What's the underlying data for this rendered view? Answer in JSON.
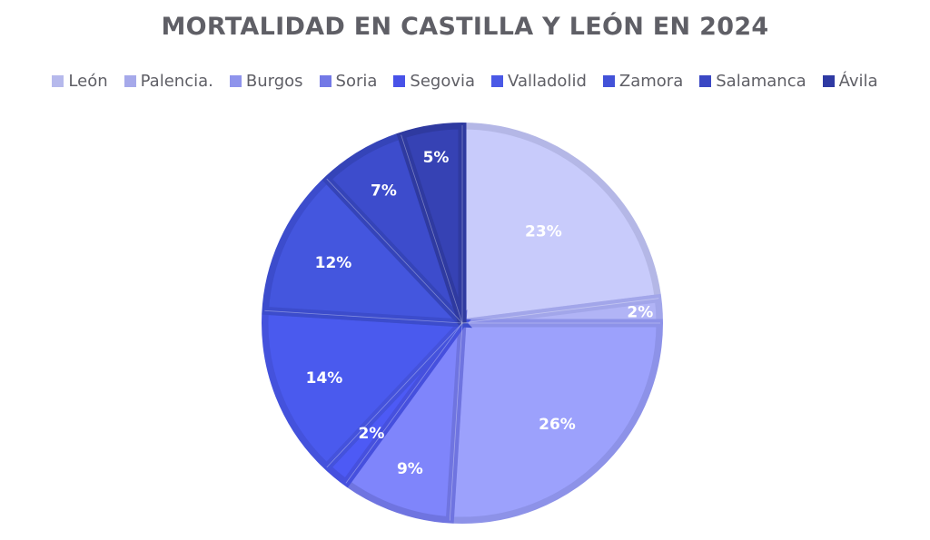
{
  "chart_data": {
    "type": "pie",
    "title": "MORTALIDAD EN CASTILLA Y LEÓN EN 2024",
    "legend_position": "top",
    "start_angle": "12 o'clock, clockwise",
    "slices": [
      {
        "label": "León",
        "value": 23,
        "display": "23%",
        "color": "#c8cbfb",
        "border": "#b4b7e6",
        "legend_color": "#b6b9ec"
      },
      {
        "label": "Palencia.",
        "value": 2,
        "display": "2%",
        "color": "#b1b4f6",
        "border": "#a2a6ea",
        "legend_color": "#a6a9ea"
      },
      {
        "label": "Burgos",
        "value": 26,
        "display": "26%",
        "color": "#9ca1fc",
        "border": "#8d92e8",
        "legend_color": "#8f94ec"
      },
      {
        "label": "Soria",
        "value": 9,
        "display": "9%",
        "color": "#7f85fb",
        "border": "#6f74e0",
        "legend_color": "#7379e6"
      },
      {
        "label": "Segovia",
        "value": 2,
        "display": "2%",
        "color": "#4d5af5",
        "border": "#4650de",
        "legend_color": "#4852e8"
      },
      {
        "label": "Valladolid",
        "value": 14,
        "display": "14%",
        "color": "#4a5aee",
        "border": "#4452dc",
        "legend_color": "#4a59e6"
      },
      {
        "label": "Zamora",
        "value": 12,
        "display": "12%",
        "color": "#4456de",
        "border": "#3c4ccc",
        "legend_color": "#4352d8"
      },
      {
        "label": "Salamanca",
        "value": 7,
        "display": "7%",
        "color": "#3d4ccc",
        "border": "#3544b8",
        "legend_color": "#3b48c4"
      },
      {
        "label": "Ávila",
        "value": 5,
        "display": "5%",
        "color": "#3642b4",
        "border": "#2f3aa0",
        "legend_color": "#2f3aa3"
      }
    ]
  }
}
